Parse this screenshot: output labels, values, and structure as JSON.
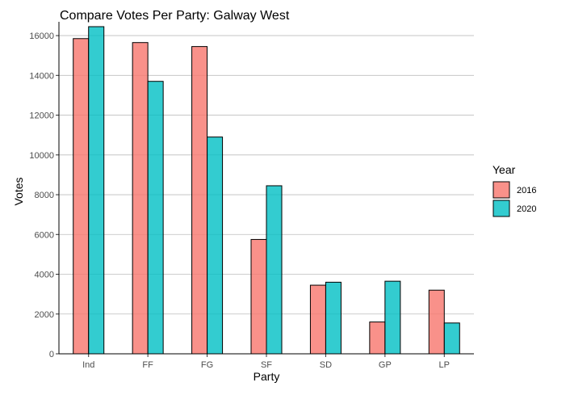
{
  "chart_data": {
    "type": "bar",
    "title": "Compare Votes Per Party: Galway West",
    "xlabel": "Party",
    "ylabel": "Votes",
    "categories": [
      "Ind",
      "FF",
      "FG",
      "SF",
      "SD",
      "GP",
      "LP"
    ],
    "series": [
      {
        "name": "2016",
        "color": "#F8766D",
        "values": [
          15850,
          15650,
          15450,
          5750,
          3450,
          1600,
          3200
        ]
      },
      {
        "name": "2020",
        "color": "#00BFC4",
        "values": [
          16450,
          13700,
          10900,
          8450,
          3600,
          3650,
          1550
        ]
      }
    ],
    "ylim": [
      0,
      16450
    ],
    "yticks": [
      0,
      2000,
      4000,
      6000,
      8000,
      10000,
      12000,
      14000,
      16000
    ],
    "grid": "horizontal major",
    "legend": {
      "title": "Year",
      "position": "right"
    }
  }
}
